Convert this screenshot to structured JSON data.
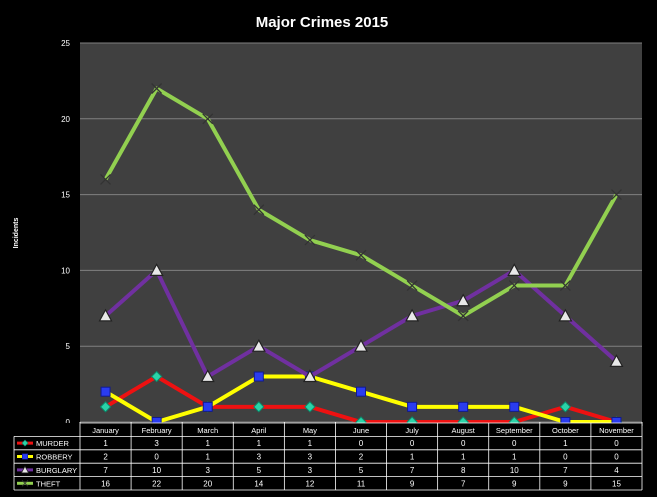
{
  "chart_data": {
    "type": "line",
    "title": "Major Crimes 2015",
    "ylabel": "Incidents",
    "xlabel": "",
    "ylim": [
      0,
      25
    ],
    "yticks": [
      0,
      5,
      10,
      15,
      20,
      25
    ],
    "grid": true,
    "legend": "data-table-left",
    "categories": [
      "January",
      "February",
      "March",
      "April",
      "May",
      "June",
      "July",
      "August",
      "September",
      "October",
      "November"
    ],
    "series": [
      {
        "name": "MURDER",
        "color": "#ee1111",
        "marker": "diamond-cyan",
        "values": [
          1,
          3,
          1,
          1,
          1,
          0,
          0,
          0,
          0,
          1,
          0
        ]
      },
      {
        "name": "ROBBERY",
        "color": "#ffff00",
        "marker": "square-blue",
        "values": [
          2,
          0,
          1,
          3,
          3,
          2,
          1,
          1,
          1,
          0,
          0
        ]
      },
      {
        "name": "BURGLARY",
        "color": "#7030a0",
        "marker": "triangle-white",
        "values": [
          7,
          10,
          3,
          5,
          3,
          5,
          7,
          8,
          10,
          7,
          4
        ]
      },
      {
        "name": "THEFT",
        "color": "#92d050",
        "marker": "x-dark",
        "values": [
          16,
          22,
          20,
          14,
          12,
          11,
          9,
          7,
          9,
          9,
          15
        ]
      }
    ],
    "colors": {
      "background": "#000000",
      "plot_area": "#404040",
      "gridline": "#808080",
      "text": "#ffffff"
    }
  }
}
